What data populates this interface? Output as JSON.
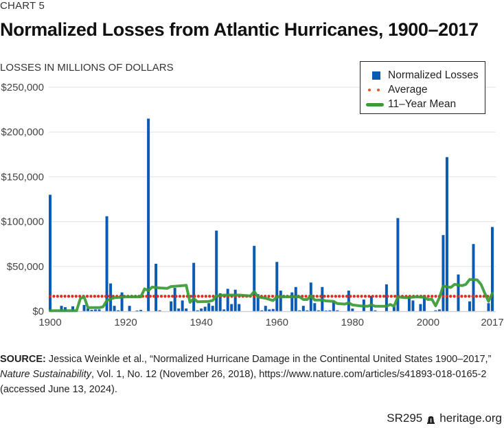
{
  "header": {
    "chart_label": "CHART 5",
    "title": "Normalized Losses from Atlantic Hurricanes, 1900–2017",
    "ylabel": "LOSSES IN MILLIONS OF DOLLARS"
  },
  "legend": {
    "items": [
      {
        "label": "Normalized Losses",
        "type": "bar"
      },
      {
        "label": "Average",
        "type": "dotted"
      },
      {
        "label": "11–Year Mean",
        "type": "line"
      }
    ]
  },
  "colors": {
    "bar": "#0b5bb5",
    "average": "#e0301a",
    "average_shadow": "#111111",
    "mean": "#3a9a35",
    "grid": "#e6e6e6",
    "legend_dot": "#e05a1a"
  },
  "source": {
    "label": "SOURCE:",
    "text1": " Jessica Weinkle et al., “Normalized Hurricane Damage in the Continental United States 1900–2017,”",
    "journal": "Nature Sustainability",
    "text2": ", Vol. 1, No. 12 (November 26, 2018), https://www.nature.com/articles/s41893-018-0165-2",
    "text3": "(accessed June 13, 2024)."
  },
  "footer": {
    "code": "SR295",
    "site": "heritage.org"
  },
  "chart_data": {
    "type": "bar",
    "title": "Normalized Losses from Atlantic Hurricanes, 1900–2017",
    "xlabel": "",
    "ylabel": "Losses in millions of dollars",
    "xlim": [
      1900,
      2017
    ],
    "ylim": [
      0,
      250000
    ],
    "x_ticks": [
      "1900",
      "1920",
      "1940",
      "1960",
      "1980",
      "2000",
      "2017"
    ],
    "x_tick_values": [
      1900,
      1920,
      1940,
      1960,
      1980,
      2000,
      2017
    ],
    "y_ticks": [
      "$0",
      "$50,000",
      "$100,000",
      "$150,000",
      "$200,000",
      "$250,000"
    ],
    "y_tick_values": [
      0,
      50000,
      100000,
      150000,
      200000,
      250000
    ],
    "grid": true,
    "legend_position": "top-right",
    "series": [
      {
        "name": "Normalized Losses",
        "type": "bar",
        "points": [
          [
            1900,
            130000
          ],
          [
            1903,
            6000
          ],
          [
            1904,
            4500
          ],
          [
            1906,
            5500
          ],
          [
            1909,
            7000
          ],
          [
            1910,
            3000
          ],
          [
            1911,
            1500
          ],
          [
            1912,
            2000
          ],
          [
            1913,
            2000
          ],
          [
            1915,
            106000
          ],
          [
            1916,
            31000
          ],
          [
            1917,
            6000
          ],
          [
            1918,
            1000
          ],
          [
            1919,
            21000
          ],
          [
            1921,
            6000
          ],
          [
            1923,
            500
          ],
          [
            1924,
            1500
          ],
          [
            1926,
            215000
          ],
          [
            1928,
            53000
          ],
          [
            1929,
            1000
          ],
          [
            1932,
            11000
          ],
          [
            1933,
            26000
          ],
          [
            1934,
            3000
          ],
          [
            1935,
            12000
          ],
          [
            1936,
            3000
          ],
          [
            1938,
            54000
          ],
          [
            1939,
            1000
          ],
          [
            1940,
            3000
          ],
          [
            1941,
            5000
          ],
          [
            1942,
            9000
          ],
          [
            1943,
            6000
          ],
          [
            1944,
            90000
          ],
          [
            1945,
            20000
          ],
          [
            1946,
            2000
          ],
          [
            1947,
            25000
          ],
          [
            1948,
            8000
          ],
          [
            1949,
            24000
          ],
          [
            1950,
            8000
          ],
          [
            1954,
            73000
          ],
          [
            1955,
            19000
          ],
          [
            1956,
            1000
          ],
          [
            1957,
            6000
          ],
          [
            1958,
            2000
          ],
          [
            1959,
            2500
          ],
          [
            1960,
            55000
          ],
          [
            1961,
            23000
          ],
          [
            1964,
            21000
          ],
          [
            1965,
            27000
          ],
          [
            1966,
            1000
          ],
          [
            1967,
            6000
          ],
          [
            1968,
            1000
          ],
          [
            1969,
            32000
          ],
          [
            1970,
            9000
          ],
          [
            1971,
            1000
          ],
          [
            1972,
            27000
          ],
          [
            1973,
            500
          ],
          [
            1974,
            1000
          ],
          [
            1975,
            12000
          ],
          [
            1976,
            1000
          ],
          [
            1979,
            23000
          ],
          [
            1980,
            3000
          ],
          [
            1983,
            13000
          ],
          [
            1985,
            17000
          ],
          [
            1986,
            1000
          ],
          [
            1989,
            30000
          ],
          [
            1991,
            5000
          ],
          [
            1992,
            104000
          ],
          [
            1995,
            17000
          ],
          [
            1996,
            12000
          ],
          [
            1998,
            8000
          ],
          [
            1999,
            18000
          ],
          [
            2002,
            1000
          ],
          [
            2003,
            2000
          ],
          [
            2004,
            85000
          ],
          [
            2005,
            172000
          ],
          [
            2008,
            41000
          ],
          [
            2011,
            11000
          ],
          [
            2012,
            75000
          ],
          [
            2016,
            9000
          ],
          [
            2017,
            94000
          ]
        ]
      },
      {
        "name": "Average",
        "type": "line-dotted",
        "value": 16700
      },
      {
        "name": "11–Year Mean",
        "type": "line",
        "points": [
          [
            1900,
            500
          ],
          [
            1907,
            500
          ],
          [
            1908,
            14000
          ],
          [
            1909,
            16000
          ],
          [
            1910,
            4000
          ],
          [
            1913,
            4000
          ],
          [
            1914,
            5000
          ],
          [
            1915,
            12000
          ],
          [
            1917,
            15000
          ],
          [
            1920,
            16000
          ],
          [
            1924,
            16000
          ],
          [
            1925,
            25000
          ],
          [
            1926,
            23000
          ],
          [
            1927,
            27000
          ],
          [
            1929,
            26000
          ],
          [
            1931,
            25500
          ],
          [
            1932,
            27500
          ],
          [
            1935,
            28500
          ],
          [
            1936,
            29000
          ],
          [
            1937,
            10000
          ],
          [
            1938,
            14000
          ],
          [
            1939,
            10500
          ],
          [
            1942,
            11000
          ],
          [
            1943,
            12000
          ],
          [
            1944,
            17000
          ],
          [
            1946,
            18000
          ],
          [
            1950,
            18000
          ],
          [
            1953,
            17000
          ],
          [
            1954,
            22000
          ],
          [
            1955,
            16000
          ],
          [
            1957,
            14500
          ],
          [
            1959,
            12000
          ],
          [
            1960,
            16000
          ],
          [
            1963,
            16000
          ],
          [
            1966,
            16000
          ],
          [
            1967,
            13000
          ],
          [
            1968,
            13000
          ],
          [
            1969,
            17000
          ],
          [
            1970,
            12500
          ],
          [
            1972,
            12500
          ],
          [
            1973,
            11500
          ],
          [
            1975,
            11000
          ],
          [
            1976,
            8500
          ],
          [
            1978,
            8000
          ],
          [
            1979,
            9500
          ],
          [
            1980,
            7000
          ],
          [
            1982,
            6000
          ],
          [
            1984,
            5500
          ],
          [
            1985,
            7000
          ],
          [
            1986,
            5500
          ],
          [
            1989,
            5500
          ],
          [
            1990,
            7500
          ],
          [
            1991,
            5500
          ],
          [
            1992,
            16000
          ],
          [
            1994,
            15000
          ],
          [
            1997,
            16000
          ],
          [
            1999,
            15500
          ],
          [
            2000,
            13000
          ],
          [
            2001,
            13500
          ],
          [
            2002,
            6000
          ],
          [
            2003,
            15000
          ],
          [
            2004,
            28000
          ],
          [
            2006,
            26500
          ],
          [
            2007,
            30000
          ],
          [
            2009,
            28500
          ],
          [
            2010,
            30000
          ],
          [
            2011,
            35500
          ],
          [
            2013,
            35000
          ],
          [
            2014,
            30000
          ],
          [
            2015,
            20000
          ],
          [
            2016,
            11000
          ],
          [
            2017,
            20000
          ]
        ]
      }
    ]
  }
}
